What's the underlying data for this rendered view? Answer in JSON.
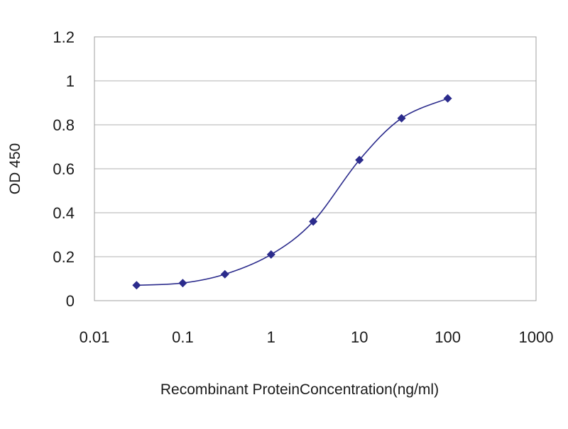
{
  "chart_data": {
    "type": "scatter",
    "title": "",
    "xlabel": "Recombinant ProteinConcentration(ng/ml)",
    "ylabel": "OD 450",
    "x_scale": "log",
    "xlim": [
      0.01,
      1000
    ],
    "ylim": [
      0,
      1.2
    ],
    "x_ticks": [
      "0.01",
      "0.1",
      "1",
      "10",
      "100",
      "1000"
    ],
    "x_tick_values": [
      0.01,
      0.1,
      1,
      10,
      100,
      1000
    ],
    "y_ticks": [
      "0",
      "0.2",
      "0.4",
      "0.6",
      "0.8",
      "1",
      "1.2"
    ],
    "y_tick_values": [
      0,
      0.2,
      0.4,
      0.6,
      0.8,
      1,
      1.2
    ],
    "grid": "horizontal",
    "legend": "none",
    "series": [
      {
        "x": [
          0.03,
          0.1,
          0.3,
          1,
          3,
          10,
          30,
          100
        ],
        "y": [
          0.07,
          0.08,
          0.12,
          0.21,
          0.36,
          0.64,
          0.83,
          0.92
        ],
        "color": "#2b2b8c",
        "marker": "diamond",
        "line": "smooth"
      }
    ]
  },
  "colors": {
    "plot_border": "#a0a0a0",
    "gridline": "#b0b0b0",
    "axis": "#707070"
  }
}
